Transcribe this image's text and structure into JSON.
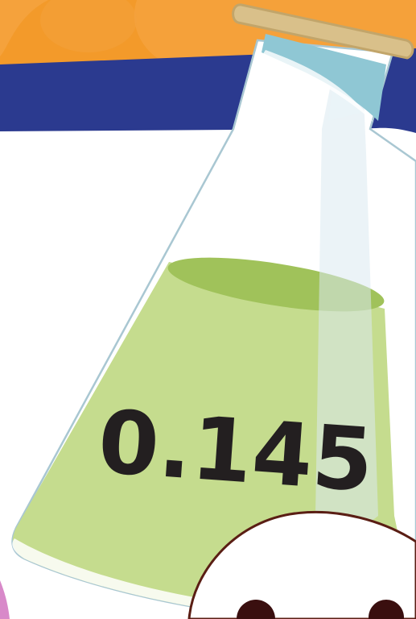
{
  "flask": {
    "value_label": "0.145",
    "liquid_color": "#c5dc8e",
    "liquid_surface_color": "#a0c25a",
    "glass_outline_color": "#a9c7d2",
    "stopper_color": "#d9c08a"
  },
  "background": {
    "top_band_color": "#f39a2a",
    "navy_band_color": "#2b3a8f",
    "page_color": "#ffffff"
  },
  "character": {
    "face_color": "#ffffff",
    "outline_color": "#5a1e14",
    "eye_color": "#3a0f0f"
  }
}
